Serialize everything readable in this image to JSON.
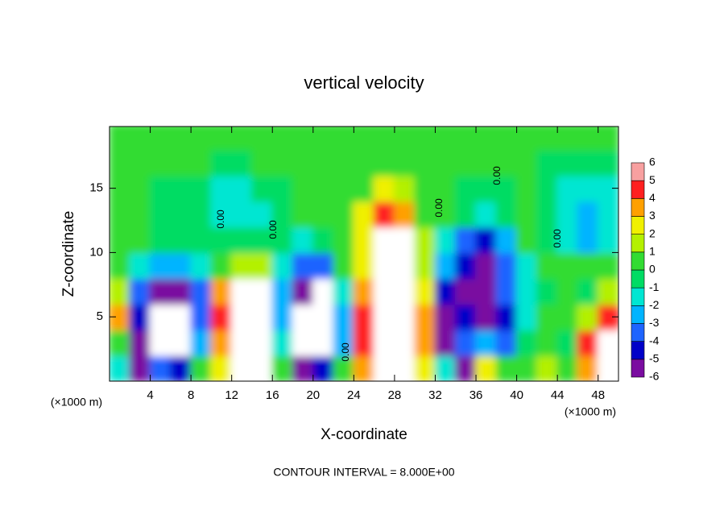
{
  "chart_data": {
    "type": "heatmap",
    "title": "vertical velocity",
    "xlabel": "X-coordinate",
    "ylabel": "Z-coordinate",
    "x_unit_label": "(×1000 m)",
    "x_unit_label_right": "(×1000 m)",
    "note": "CONTOUR INTERVAL = 8.000E+00",
    "contour_labels": [
      "0.00",
      "0.00",
      "0.00",
      "0.00",
      "0.00",
      "0.00"
    ],
    "xlim": [
      0,
      50
    ],
    "ylim": [
      0,
      19.8
    ],
    "xticks": [
      4,
      8,
      12,
      16,
      20,
      24,
      28,
      32,
      36,
      40,
      44,
      48
    ],
    "yticks": [
      5,
      10,
      15
    ],
    "x": [
      1,
      3,
      5,
      7,
      9,
      11,
      13,
      15,
      17,
      19,
      21,
      23,
      25,
      27,
      29,
      31,
      33,
      35,
      37,
      39,
      41,
      43,
      45,
      47,
      49
    ],
    "y": [
      1,
      3,
      5,
      7,
      9,
      11,
      13,
      15,
      17,
      19
    ],
    "z": [
      [
        -1,
        -5,
        -3,
        -4,
        1,
        3,
        8,
        8,
        1,
        -5,
        -4,
        1,
        4,
        8,
        8,
        3,
        -1,
        -6,
        3,
        1,
        1,
        2,
        1,
        4,
        7
      ],
      [
        1,
        -5,
        -7,
        -8,
        -2,
        4,
        9,
        9,
        -1,
        -7,
        -8,
        -2,
        5,
        9,
        9,
        4,
        -6,
        -3,
        -2,
        -3,
        0,
        1,
        0,
        5,
        8
      ],
      [
        4,
        -4,
        -8,
        -8,
        -3,
        5,
        9,
        9,
        -2,
        -7,
        -8,
        -2,
        5,
        9,
        9,
        4,
        -5,
        -4,
        -5,
        -4,
        -1,
        1,
        1,
        2,
        5
      ],
      [
        2,
        -3,
        -6,
        -5,
        -3,
        4,
        7,
        7,
        -2,
        -5,
        -7,
        -1,
        4,
        9,
        9,
        3,
        -4,
        -5,
        -5,
        -3,
        -1,
        0,
        1,
        0,
        2
      ],
      [
        0.5,
        -1,
        -2,
        -2,
        -1,
        1,
        2,
        2,
        -1,
        -3,
        -3,
        0.5,
        3,
        9,
        9,
        2,
        -2,
        -4,
        -5,
        -3,
        -1,
        0.5,
        0.5,
        0.5,
        0.5
      ],
      [
        0.5,
        0.5,
        0,
        0,
        0,
        0,
        -0.5,
        -0.5,
        0,
        -1,
        0,
        0.5,
        3,
        8,
        7,
        2,
        -1,
        -3,
        -4,
        -2,
        0.5,
        0,
        -1,
        -2,
        -1
      ],
      [
        0.5,
        0.5,
        0,
        -0.5,
        0,
        -1,
        -1.5,
        -1,
        0,
        0.5,
        0.5,
        0.5,
        3,
        5,
        4,
        1,
        0.5,
        -0.5,
        -1,
        0,
        0.5,
        0,
        -1.5,
        -2.5,
        -1.5
      ],
      [
        0.5,
        0.5,
        0,
        0,
        -0.5,
        -1,
        -1,
        -0.5,
        0,
        0.5,
        0.5,
        0.5,
        1,
        3,
        2,
        0.5,
        0.5,
        0,
        0,
        0,
        0.5,
        0,
        -1,
        -1.5,
        -1
      ],
      [
        1,
        0.5,
        0.5,
        0.5,
        0.5,
        0,
        0,
        0.5,
        0.5,
        0.5,
        0.5,
        0.5,
        0.5,
        1,
        0.5,
        0.5,
        0.5,
        0.5,
        0.5,
        0.5,
        0.5,
        0,
        -0.5,
        -0.5,
        0
      ],
      [
        0.5,
        0.5,
        0.5,
        0.5,
        0.5,
        0.5,
        0.5,
        0.5,
        0.5,
        0.5,
        0.5,
        0.5,
        0.5,
        0.5,
        0.5,
        0.5,
        0.5,
        0.5,
        0.5,
        0.5,
        0.5,
        0.5,
        0.5,
        0.5,
        0.5
      ]
    ],
    "colorbar_levels": [
      -6,
      -5,
      -4,
      -3,
      -2,
      -1,
      0,
      1,
      2,
      3,
      4,
      5,
      6
    ],
    "colorbar_colors": [
      "#7a0ca0",
      "#0000c8",
      "#1e64ff",
      "#00b4ff",
      "#00e6d2",
      "#00dc64",
      "#32dc32",
      "#b4f000",
      "#f0f000",
      "#ffa000",
      "#ff2020",
      "#f8a0a0"
    ],
    "out_of_range_color": "#ffffff"
  }
}
